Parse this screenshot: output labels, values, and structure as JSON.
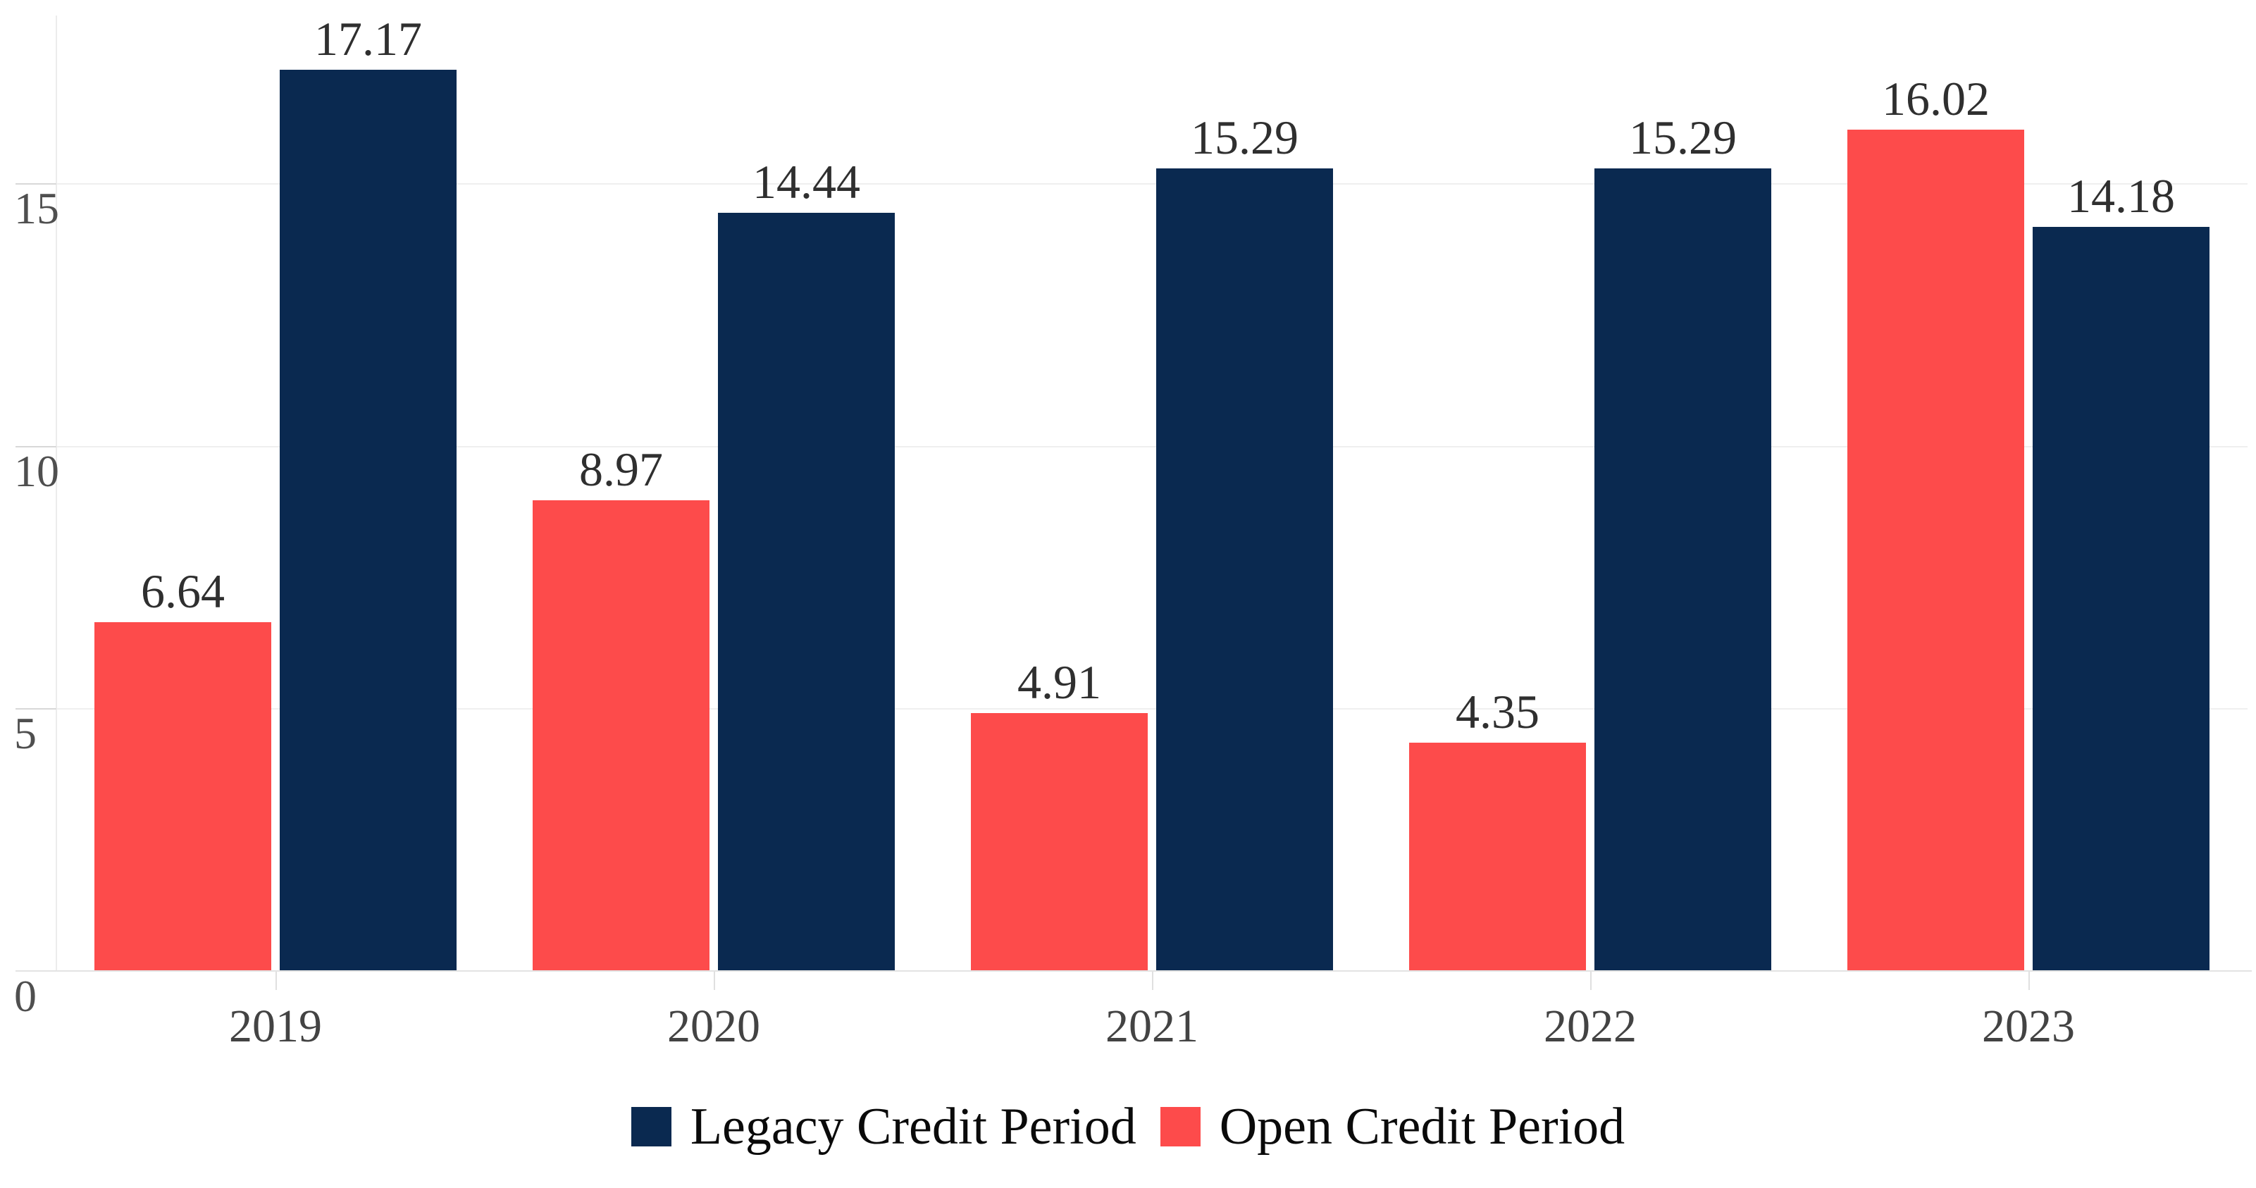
{
  "chart_data": {
    "type": "bar",
    "categories": [
      "2019",
      "2020",
      "2021",
      "2022",
      "2023"
    ],
    "series": [
      {
        "name": "Legacy Credit Period",
        "color": "#0a2950",
        "values": [
          17.17,
          14.44,
          15.29,
          15.29,
          14.18
        ]
      },
      {
        "name": "Open Credit Period",
        "color": "#fd4b4b",
        "values": [
          6.64,
          8.97,
          4.91,
          4.35,
          16.02
        ]
      }
    ],
    "bar_draw_order": [
      1,
      0
    ],
    "value_labels": [
      "6.64",
      "17.17",
      "8.97",
      "14.44",
      "4.91",
      "15.29",
      "4.35",
      "15.29",
      "16.02",
      "14.18"
    ],
    "title": "",
    "xlabel": "",
    "ylabel": "",
    "yticks": [
      0,
      5,
      10,
      15
    ],
    "ytick_labels": [
      "0",
      "5",
      "10",
      "15"
    ],
    "ylim": [
      0,
      18.2
    ],
    "grid": true,
    "legend_position": "bottom"
  },
  "colors": {
    "background": "#ffffff",
    "gridline": "#efefef",
    "axis_line": "#e3e3e3",
    "tick_mark": "#d8d8d8",
    "value_label_text": "#2f2f2f",
    "axis_label_text": "#434343",
    "legend_text": "#0a0a0a"
  }
}
